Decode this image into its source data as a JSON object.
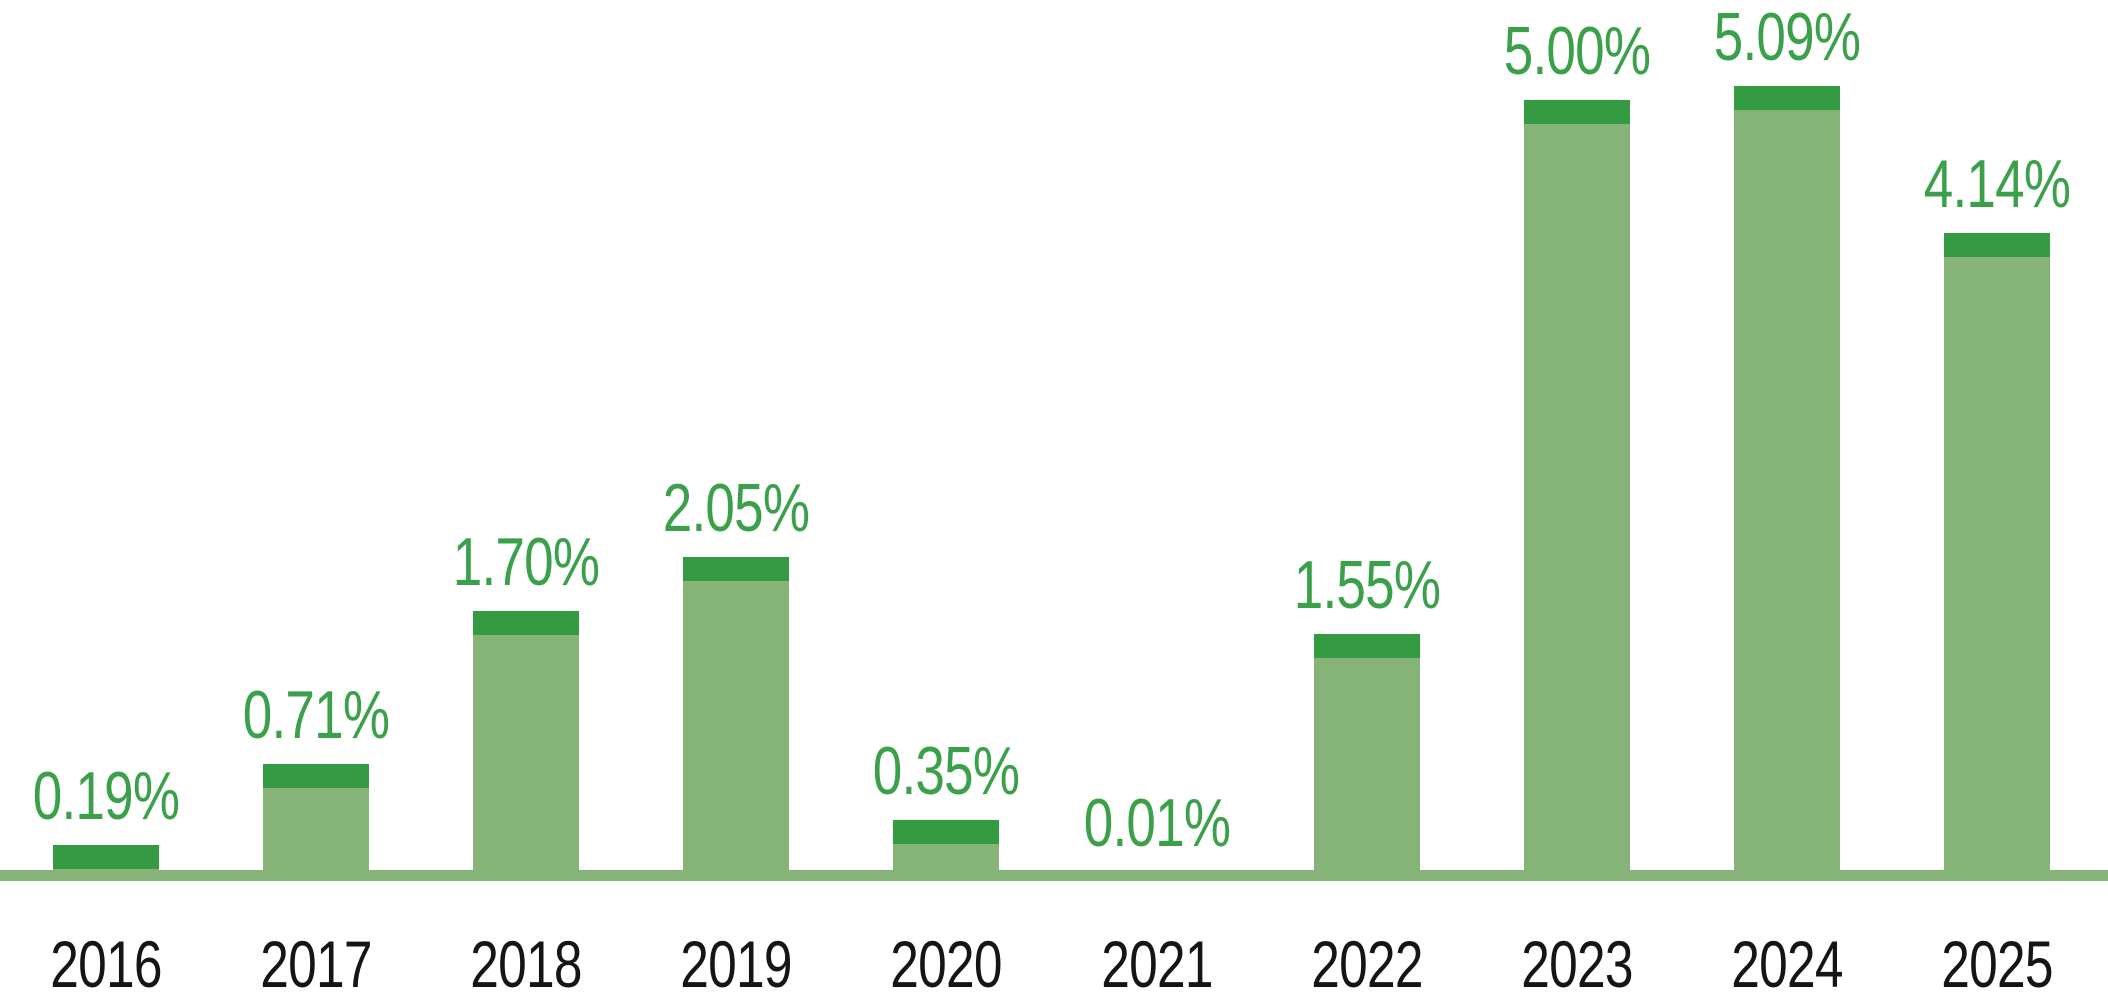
{
  "chart_data": {
    "type": "bar",
    "title": "",
    "xlabel": "",
    "ylabel": "",
    "categories": [
      "2016",
      "2017",
      "2018",
      "2019",
      "2020",
      "2021",
      "2022",
      "2023",
      "2024",
      "2025"
    ],
    "values": [
      0.19,
      0.71,
      1.7,
      2.05,
      0.35,
      0.01,
      1.55,
      5.0,
      5.09,
      4.14
    ],
    "value_labels": [
      "0.19%",
      "0.71%",
      "1.70%",
      "2.05%",
      "0.35%",
      "0.01%",
      "1.55%",
      "5.00%",
      "5.09%",
      "4.14%"
    ],
    "ylim": [
      0,
      5.5
    ],
    "grid": "off",
    "legend": "none",
    "value_labels_position": "above-bar",
    "bar_style": "light green body with constant-height darker green cap segment at top",
    "colors": {
      "bar_body": "#86B377",
      "bar_cap": "#359B43",
      "axis_line": "#86B377",
      "value_label": "#3BA04A",
      "year_label": "#151515",
      "background": "#FFFFFF"
    }
  }
}
